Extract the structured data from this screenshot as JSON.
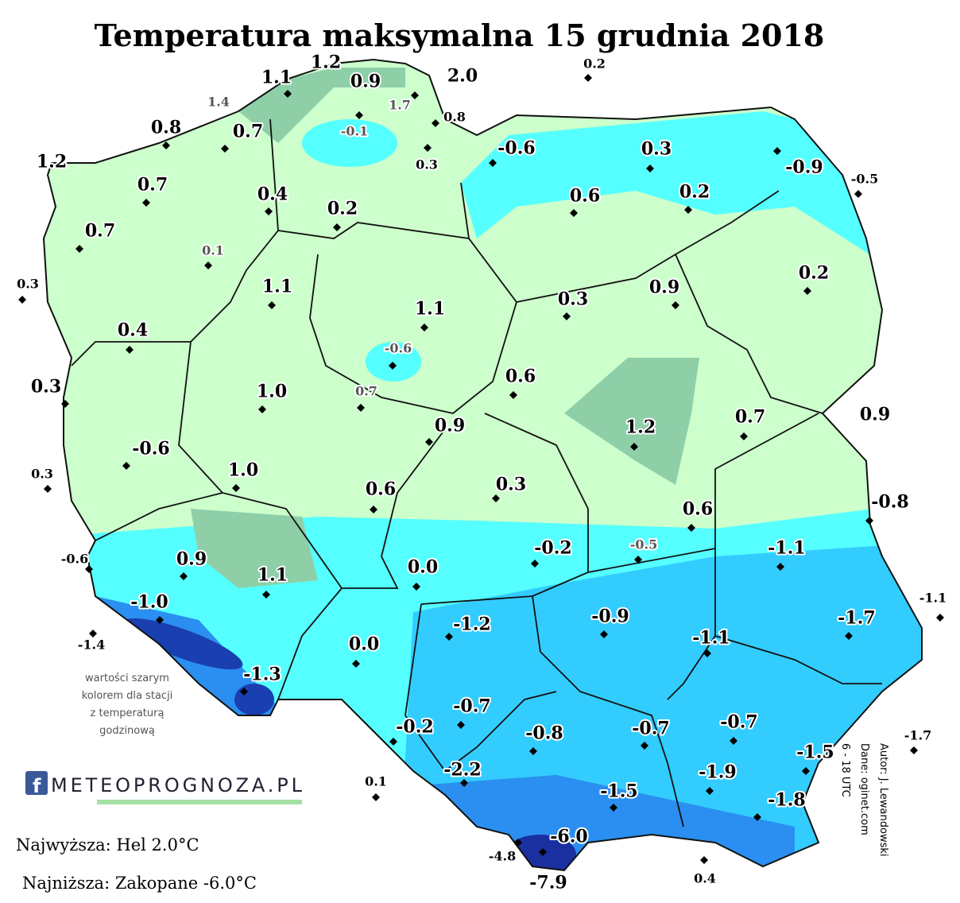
{
  "title": "Temperatura maksymalna 15 grudnia 2018",
  "stations": [
    {
      "label": "1.1"
    },
    {
      "label": "1.2"
    },
    {
      "label": "0.9"
    },
    {
      "label": "2.0"
    },
    {
      "label": "0.2"
    },
    {
      "label": "1.4",
      "hourly": true
    },
    {
      "label": "1.7",
      "hourly": true
    },
    {
      "label": "0.8"
    },
    {
      "label": "-0.1",
      "hourly": true
    },
    {
      "label": "0.3"
    },
    {
      "label": "0.8"
    },
    {
      "label": "0.7"
    },
    {
      "label": "1.2"
    },
    {
      "label": "-0.6"
    },
    {
      "label": "0.3"
    },
    {
      "label": "-0.9"
    },
    {
      "label": "-0.5"
    },
    {
      "label": "0.7"
    },
    {
      "label": "0.4"
    },
    {
      "label": "0.2"
    },
    {
      "label": "0.6"
    },
    {
      "label": "0.2"
    },
    {
      "label": "0.7"
    },
    {
      "label": "0.1",
      "hourly": true
    },
    {
      "label": "0.3"
    },
    {
      "label": "0.2"
    },
    {
      "label": "1.1"
    },
    {
      "label": "1.1"
    },
    {
      "label": "0.3"
    },
    {
      "label": "0.9"
    },
    {
      "label": "0.4"
    },
    {
      "label": "-0.6",
      "hourly": true
    },
    {
      "label": "0.3"
    },
    {
      "label": "1.0"
    },
    {
      "label": "0.7",
      "hourly": true
    },
    {
      "label": "0.6"
    },
    {
      "label": "0.9"
    },
    {
      "label": "1.2"
    },
    {
      "label": "0.7"
    },
    {
      "label": "0.9"
    },
    {
      "label": "-0.6"
    },
    {
      "label": "1.0"
    },
    {
      "label": "0.3"
    },
    {
      "label": "0.6"
    },
    {
      "label": "0.3"
    },
    {
      "label": "0.6"
    },
    {
      "label": "-0.8"
    },
    {
      "label": "-0.6"
    },
    {
      "label": "-0.2"
    },
    {
      "label": "-0.5",
      "hourly": true
    },
    {
      "label": "-1.1"
    },
    {
      "label": "0.9"
    },
    {
      "label": "1.1"
    },
    {
      "label": "0.0"
    },
    {
      "label": "-1.1"
    },
    {
      "label": "-1.0"
    },
    {
      "label": "-1.2"
    },
    {
      "label": "-0.9"
    },
    {
      "label": "-1.7"
    },
    {
      "label": "-1.4"
    },
    {
      "label": "-1.1"
    },
    {
      "label": "0.0"
    },
    {
      "label": "-1.3"
    },
    {
      "label": "-0.7"
    },
    {
      "label": "-0.2"
    },
    {
      "label": "-0.8"
    },
    {
      "label": "-0.7"
    },
    {
      "label": "-0.7"
    },
    {
      "label": "-1.7"
    },
    {
      "label": "-1.5"
    },
    {
      "label": "-2.2"
    },
    {
      "label": "-1.9"
    },
    {
      "label": "0.1"
    },
    {
      "label": "-1.5"
    },
    {
      "label": "-1.8"
    },
    {
      "label": "-6.0"
    },
    {
      "label": "-4.8"
    },
    {
      "label": "-7.9"
    },
    {
      "label": "0.4"
    }
  ],
  "note": [
    "wartości szarym",
    "kolorem dla stacji",
    "z temperaturą",
    "godzinową"
  ],
  "logo": "METEOPROGNOZA.PL",
  "highest": "Najwyższa: Hel 2.0°C",
  "lowest": "Najniższa: Zakopane  -6.0°C",
  "credits": [
    "Autor: J. Lewandowski",
    "Dane: oginet.com",
    "6 - 18 UTC"
  ]
}
